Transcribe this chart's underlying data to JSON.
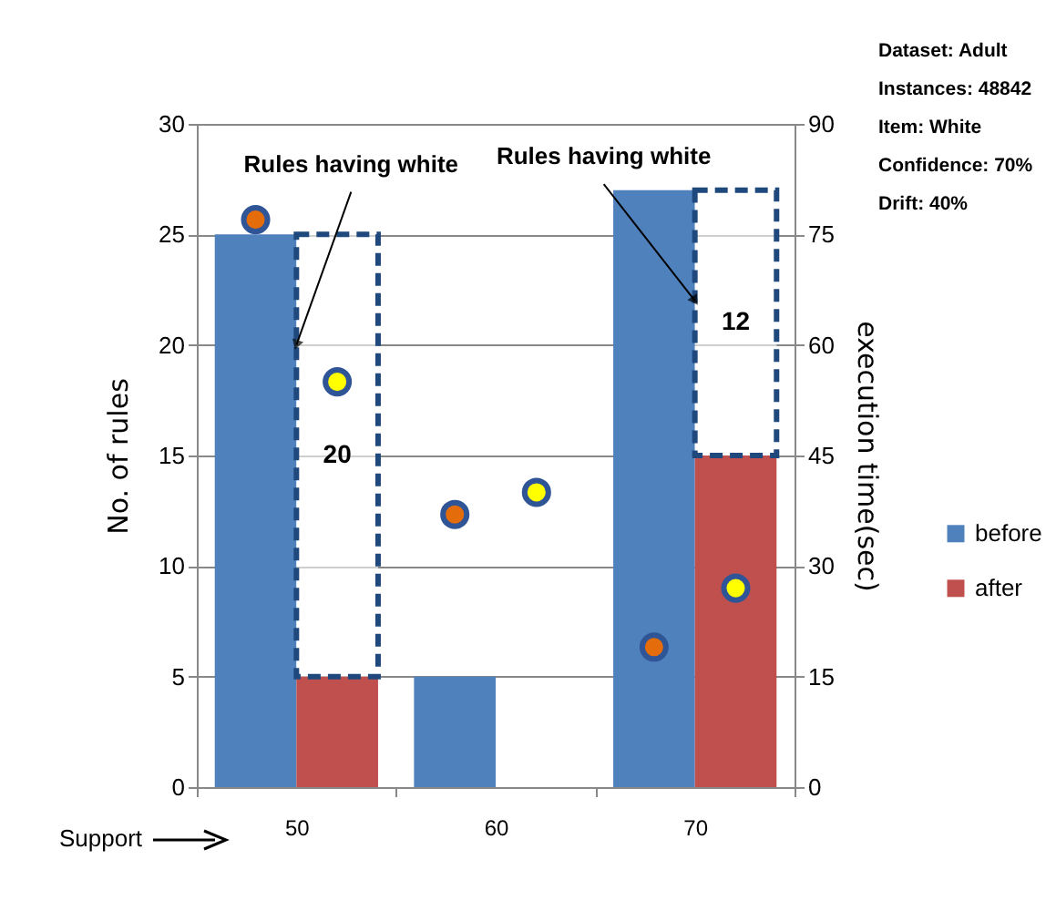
{
  "chart_data": {
    "type": "bar",
    "categories": [
      "50",
      "60",
      "70"
    ],
    "xlabel": "Support",
    "ylabel": "No. of rules",
    "y2label": "execution time(sec)",
    "ylim": [
      0,
      30
    ],
    "yticks": [
      0,
      5,
      10,
      15,
      20,
      25,
      30
    ],
    "y2lim": [
      0,
      90
    ],
    "y2ticks": [
      0,
      15,
      30,
      45,
      60,
      75,
      90
    ],
    "grid": "y",
    "legend": "right",
    "series": [
      {
        "name": "before",
        "color": "#4f81bd",
        "values": [
          25,
          5,
          27
        ]
      },
      {
        "name": "after",
        "color": "#c0504d",
        "values": [
          5,
          0,
          15
        ]
      },
      {
        "color": "#1f497d",
        "base": [
          5,
          null,
          15
        ],
        "values": [
          20,
          null,
          12
        ],
        "value_labels": [
          "20",
          null,
          "12"
        ],
        "line_style": "dashed"
      },
      {
        "type": "scatter",
        "axis": "y2",
        "marker": "circle",
        "color": "#e46c0a",
        "values": [
          77,
          37,
          19
        ]
      },
      {
        "type": "scatter",
        "axis": "y2",
        "marker": "circle",
        "color": "#ffff00",
        "values": [
          55,
          40,
          27
        ]
      }
    ],
    "annotations": [
      {
        "text": "Rules having white",
        "x": "50",
        "y": 20
      },
      {
        "text": "Rules having white",
        "x": "70",
        "y": 22
      },
      "Dataset: Adult",
      "Instances: 48842",
      "Item: White",
      "Confidence: 70%",
      "Drift: 40%"
    ]
  }
}
